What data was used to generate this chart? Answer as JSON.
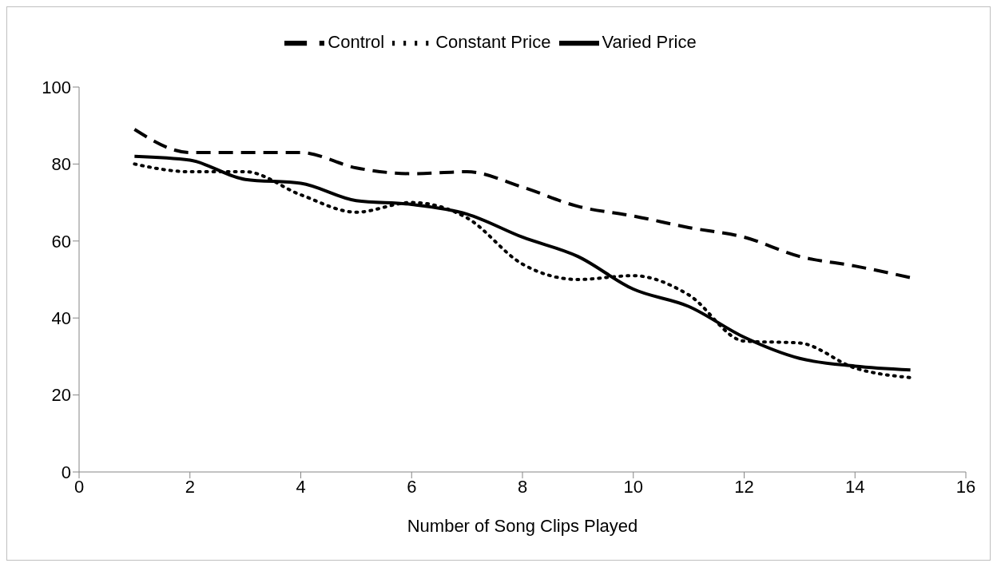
{
  "chart_data": {
    "type": "line",
    "xlabel": "Number of Song Clips Played",
    "x": [
      1,
      2,
      3,
      4,
      5,
      6,
      7,
      8,
      9,
      10,
      11,
      12,
      13,
      14,
      15
    ],
    "series": [
      {
        "name": "Control",
        "color": "#000000",
        "line_style": "dashed",
        "values": [
          89,
          83,
          83,
          83,
          79,
          77.5,
          78,
          74,
          69,
          66.5,
          63.5,
          61,
          56,
          53.5,
          50.5
        ]
      },
      {
        "name": "Constant Price",
        "color": "#000000",
        "line_style": "dotted",
        "values": [
          80,
          78,
          78,
          72,
          67.5,
          70,
          66,
          54,
          50,
          51,
          46,
          34,
          33.5,
          27,
          24.5
        ]
      },
      {
        "name": "Varied Price",
        "color": "#000000",
        "line_style": "solid",
        "values": [
          82,
          81,
          76,
          75,
          70.5,
          69.5,
          67,
          61,
          56,
          47.5,
          43,
          35,
          29.5,
          27.5,
          26.5
        ]
      }
    ],
    "xlim": [
      0,
      16
    ],
    "xticks": [
      0,
      2,
      4,
      6,
      8,
      10,
      12,
      14,
      16
    ],
    "ylim": [
      0,
      100
    ],
    "yticks": [
      0,
      20,
      40,
      60,
      80,
      100
    ],
    "grid": false,
    "legend": "top",
    "marker": "none"
  }
}
